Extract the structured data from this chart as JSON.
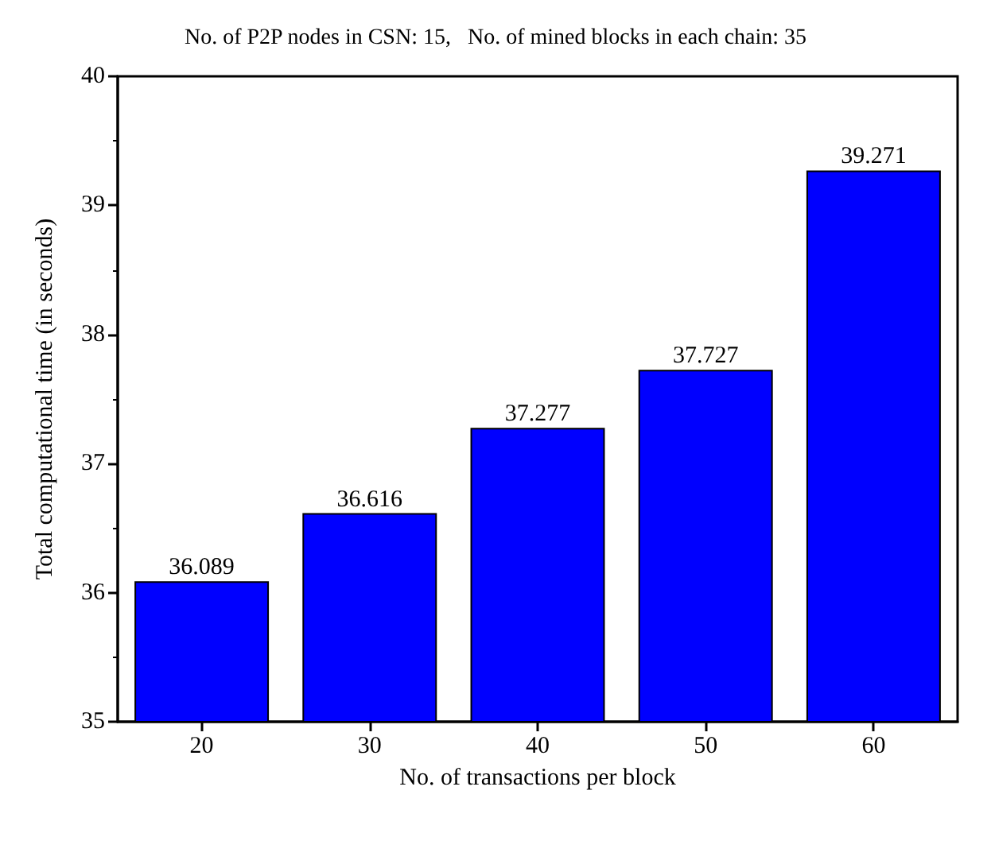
{
  "chart_data": {
    "type": "bar",
    "title": "No. of P2P nodes in CSN: 15,   No. of mined blocks in each chain: 35",
    "xlabel": "No. of transactions per block",
    "ylabel": "Total computational time (in seconds)",
    "categories": [
      "20",
      "30",
      "40",
      "50",
      "60"
    ],
    "values": [
      36.089,
      36.616,
      37.277,
      37.727,
      39.271
    ],
    "color": "#0000ff",
    "ylim": [
      35,
      40
    ],
    "yticks": [
      35,
      36,
      37,
      38,
      39,
      40
    ],
    "data_labels": true,
    "grid": false
  }
}
